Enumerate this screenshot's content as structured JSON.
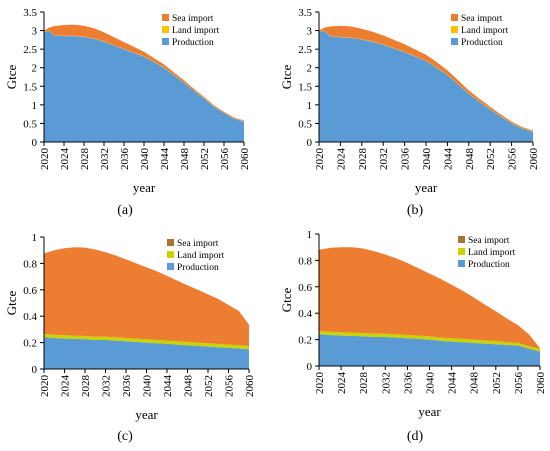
{
  "colors": {
    "production": "#5b9bd5",
    "land_import": "#ffc000",
    "sea_import": "#ed7d31",
    "land_import_cd": "#c8d400",
    "sea_import_legend_cd": "#a5762e"
  },
  "chart_data": [
    {
      "type": "area",
      "panel": "a",
      "caption": "(a)",
      "xlabel": "year",
      "ylabel": "Gtce",
      "ylim": [
        0,
        3.5
      ],
      "yticks": [
        "0",
        "0.5",
        "1",
        "1.5",
        "2",
        "2.5",
        "3",
        "3.5"
      ],
      "xticks": [
        "2020",
        "2024",
        "2028",
        "2032",
        "2036",
        "2040",
        "2044",
        "2048",
        "2052",
        "2056",
        "2060"
      ],
      "legend": {
        "position": "top-right",
        "entries": [
          "Sea import",
          "Land import",
          "Production"
        ]
      },
      "x": [
        2020,
        2021,
        2022,
        2024,
        2026,
        2028,
        2030,
        2032,
        2034,
        2036,
        2038,
        2040,
        2042,
        2044,
        2046,
        2048,
        2050,
        2052,
        2054,
        2056,
        2058,
        2060
      ],
      "series": [
        {
          "name": "Production",
          "values": [
            2.95,
            3.0,
            2.87,
            2.85,
            2.85,
            2.83,
            2.78,
            2.7,
            2.6,
            2.5,
            2.4,
            2.3,
            2.15,
            2.0,
            1.8,
            1.6,
            1.38,
            1.18,
            0.95,
            0.78,
            0.63,
            0.55
          ]
        },
        {
          "name": "Land import",
          "values": [
            0.01,
            0.01,
            0.01,
            0.01,
            0.01,
            0.01,
            0.01,
            0.01,
            0.01,
            0.01,
            0.01,
            0.01,
            0.01,
            0.01,
            0.01,
            0.01,
            0.01,
            0.01,
            0.01,
            0.01,
            0.01,
            0.01
          ]
        },
        {
          "name": "Sea import",
          "values": [
            0.04,
            0.07,
            0.24,
            0.29,
            0.3,
            0.29,
            0.27,
            0.24,
            0.21,
            0.18,
            0.15,
            0.12,
            0.1,
            0.08,
            0.06,
            0.05,
            0.04,
            0.03,
            0.03,
            0.02,
            0.02,
            0.02
          ]
        }
      ]
    },
    {
      "type": "area",
      "panel": "b",
      "caption": "(b)",
      "xlabel": "year",
      "ylabel": "Gtce",
      "ylim": [
        0,
        3.5
      ],
      "yticks": [
        "0",
        "0.5",
        "1",
        "1.5",
        "2",
        "2.5",
        "3",
        "3.5"
      ],
      "xticks": [
        "2020",
        "2024",
        "2028",
        "2032",
        "2036",
        "2040",
        "2044",
        "2048",
        "2052",
        "2056",
        "2060"
      ],
      "legend": {
        "position": "top-right",
        "entries": [
          "Sea import",
          "Land import",
          "Production"
        ]
      },
      "x": [
        2020,
        2021,
        2022,
        2024,
        2026,
        2028,
        2030,
        2032,
        2034,
        2036,
        2038,
        2040,
        2042,
        2044,
        2046,
        2048,
        2050,
        2052,
        2054,
        2056,
        2058,
        2060
      ],
      "series": [
        {
          "name": "Production",
          "values": [
            2.95,
            3.0,
            2.85,
            2.82,
            2.8,
            2.76,
            2.7,
            2.62,
            2.52,
            2.42,
            2.3,
            2.18,
            2.0,
            1.8,
            1.55,
            1.3,
            1.08,
            0.88,
            0.68,
            0.5,
            0.36,
            0.28
          ]
        },
        {
          "name": "Land import",
          "values": [
            0.01,
            0.01,
            0.01,
            0.01,
            0.01,
            0.01,
            0.01,
            0.01,
            0.01,
            0.01,
            0.01,
            0.01,
            0.01,
            0.01,
            0.01,
            0.01,
            0.01,
            0.01,
            0.01,
            0.01,
            0.01,
            0.01
          ]
        },
        {
          "name": "Sea import",
          "values": [
            0.04,
            0.07,
            0.25,
            0.3,
            0.3,
            0.28,
            0.26,
            0.24,
            0.22,
            0.2,
            0.18,
            0.16,
            0.14,
            0.12,
            0.1,
            0.08,
            0.07,
            0.06,
            0.05,
            0.04,
            0.03,
            0.02
          ]
        }
      ]
    },
    {
      "type": "area",
      "panel": "c",
      "caption": "(c)",
      "xlabel": "year",
      "ylabel": "Gtce",
      "ylim": [
        0,
        1
      ],
      "yticks": [
        "0",
        "0.2",
        "0.4",
        "0.6",
        "0.8",
        "1"
      ],
      "xticks": [
        "2020",
        "2024",
        "2028",
        "2032",
        "2036",
        "2040",
        "2044",
        "2048",
        "2052",
        "2056",
        "2060"
      ],
      "legend": {
        "position": "top-right",
        "entries": [
          "Sea import",
          "Land import",
          "Production"
        ]
      },
      "x": [
        2020,
        2022,
        2024,
        2026,
        2028,
        2030,
        2032,
        2034,
        2036,
        2038,
        2040,
        2042,
        2044,
        2046,
        2048,
        2050,
        2052,
        2054,
        2056,
        2058,
        2060
      ],
      "series": [
        {
          "name": "Production",
          "values": [
            0.24,
            0.235,
            0.23,
            0.228,
            0.225,
            0.22,
            0.22,
            0.215,
            0.21,
            0.205,
            0.2,
            0.195,
            0.19,
            0.185,
            0.18,
            0.175,
            0.17,
            0.165,
            0.16,
            0.155,
            0.15
          ]
        },
        {
          "name": "Land import",
          "values": [
            0.025,
            0.025,
            0.025,
            0.025,
            0.025,
            0.025,
            0.025,
            0.025,
            0.025,
            0.025,
            0.025,
            0.025,
            0.025,
            0.025,
            0.025,
            0.025,
            0.025,
            0.025,
            0.025,
            0.025,
            0.025
          ]
        },
        {
          "name": "Sea import",
          "values": [
            0.61,
            0.64,
            0.66,
            0.67,
            0.67,
            0.66,
            0.64,
            0.62,
            0.595,
            0.57,
            0.545,
            0.52,
            0.49,
            0.46,
            0.43,
            0.4,
            0.37,
            0.34,
            0.3,
            0.26,
            0.16
          ]
        }
      ]
    },
    {
      "type": "area",
      "panel": "d",
      "caption": "(d)",
      "xlabel": "year",
      "ylabel": "Gtce",
      "ylim": [
        0,
        1
      ],
      "yticks": [
        "0",
        "0.2",
        "0.4",
        "0.6",
        "0.8",
        "1"
      ],
      "xticks": [
        "2020",
        "2024",
        "2028",
        "2032",
        "2036",
        "2040",
        "2044",
        "2048",
        "2052",
        "2056",
        "2060"
      ],
      "legend": {
        "position": "top-right",
        "entries": [
          "Sea import",
          "Land import",
          "Production"
        ]
      },
      "x": [
        2020,
        2022,
        2024,
        2026,
        2028,
        2030,
        2032,
        2034,
        2036,
        2038,
        2040,
        2042,
        2044,
        2046,
        2048,
        2050,
        2052,
        2054,
        2056,
        2058,
        2060
      ],
      "series": [
        {
          "name": "Production",
          "values": [
            0.24,
            0.235,
            0.23,
            0.228,
            0.225,
            0.22,
            0.22,
            0.215,
            0.21,
            0.205,
            0.2,
            0.19,
            0.185,
            0.18,
            0.175,
            0.17,
            0.165,
            0.16,
            0.155,
            0.13,
            0.11
          ]
        },
        {
          "name": "Land import",
          "values": [
            0.025,
            0.025,
            0.025,
            0.025,
            0.025,
            0.025,
            0.025,
            0.025,
            0.025,
            0.025,
            0.025,
            0.025,
            0.025,
            0.025,
            0.025,
            0.025,
            0.025,
            0.02,
            0.02,
            0.02,
            0.02
          ]
        },
        {
          "name": "Sea import",
          "values": [
            0.615,
            0.635,
            0.645,
            0.647,
            0.64,
            0.625,
            0.6,
            0.575,
            0.545,
            0.51,
            0.475,
            0.445,
            0.405,
            0.365,
            0.32,
            0.27,
            0.225,
            0.18,
            0.135,
            0.09,
            0.005
          ]
        }
      ]
    }
  ]
}
